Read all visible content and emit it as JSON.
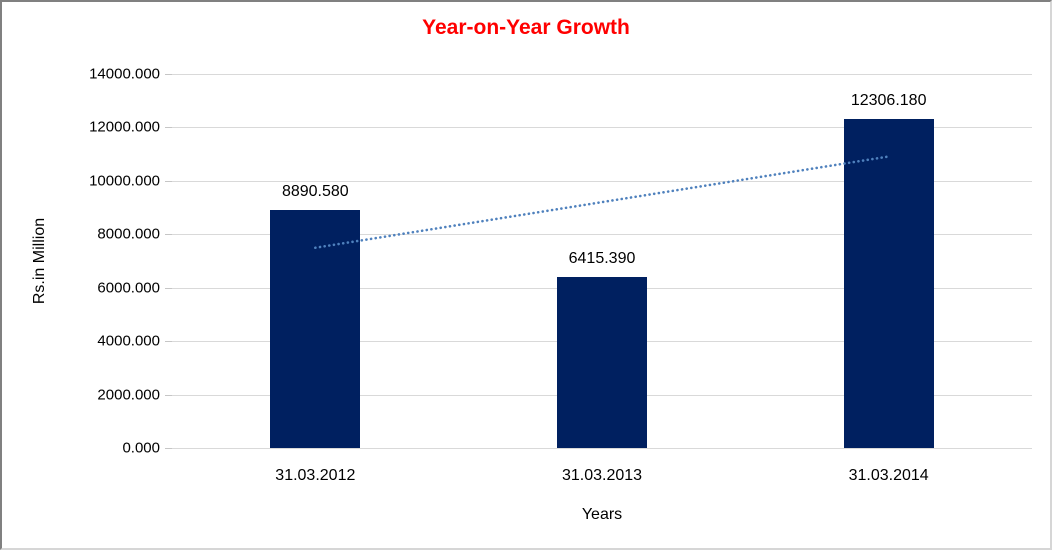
{
  "chart_data": {
    "type": "bar",
    "title": "Year-on-Year Growth",
    "title_color": "#ff0000",
    "categories": [
      "31.03.2012",
      "31.03.2013",
      "31.03.2014"
    ],
    "values": [
      8890.58,
      6415.39,
      12306.18
    ],
    "bar_labels": [
      "8890.580",
      "6415.390",
      "12306.180"
    ],
    "xlabel": "Years",
    "ylabel": "Rs.in Million",
    "ylim": [
      0,
      14000
    ],
    "ytick_step": 2000,
    "ytick_labels": [
      "0.000",
      "2000.000",
      "4000.000",
      "6000.000",
      "8000.000",
      "10000.000",
      "12000.000",
      "14000.000"
    ],
    "grid": true,
    "legend": "none",
    "bar_color": "#002060",
    "gridline_color": "#d9d9d9",
    "trendline": {
      "type": "linear",
      "style": "dotted",
      "color": "#4f81bd",
      "endpoint_values": [
        7496.25,
        10911.85
      ]
    }
  }
}
